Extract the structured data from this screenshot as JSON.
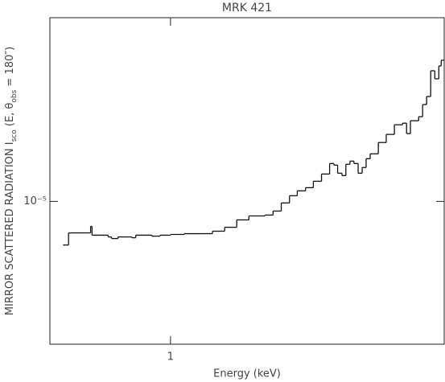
{
  "chart_data": {
    "type": "step-line",
    "title": "MRK 421",
    "x_label": "Energy (keV)",
    "y_label": [
      "MIRROR SCATTERED RADIATION I",
      "sco",
      " (E, ",
      "θ",
      "obs",
      " = 180″)"
    ],
    "log_x": true,
    "log_y": true,
    "color": "#111111",
    "xlim": [
      0.4,
      8.0
    ],
    "xticks": [
      1
    ],
    "ylim": [
      4e-06,
      3.25e-05
    ],
    "yticks": [
      {
        "value": 1e-05,
        "label": "10⁻⁵"
      }
    ],
    "x": [
      0.442,
      0.461,
      0.503,
      0.545,
      0.551,
      0.623,
      0.639,
      0.671,
      0.745,
      0.768,
      0.868,
      0.923,
      1.0,
      1.11,
      1.255,
      1.376,
      1.509,
      1.654,
      1.814,
      2.05,
      2.18,
      2.32,
      2.47,
      2.62,
      2.79,
      2.96,
      3.15,
      3.35,
      3.46,
      3.56,
      3.68,
      3.79,
      3.91,
      4.03,
      4.16,
      4.29,
      4.42,
      4.56,
      4.85,
      5.15,
      5.48,
      5.83,
      6.01,
      6.19,
      6.59,
      6.79,
      7.0,
      7.22,
      7.45,
      7.68,
      7.82
    ],
    "values": [
      7.56e-06,
      8.17e-06,
      8.17e-06,
      8.52e-06,
      8.05e-06,
      7.96e-06,
      7.88e-06,
      7.96e-06,
      7.92e-06,
      8.05e-06,
      8e-06,
      8.05e-06,
      8.09e-06,
      8.13e-06,
      8.13e-06,
      8.26e-06,
      8.47e-06,
      8.88e-06,
      9.11e-06,
      9.16e-06,
      9.4e-06,
      9.9e-06,
      1.037e-05,
      1.07e-05,
      1.092e-05,
      1.138e-05,
      1.192e-05,
      1.275e-05,
      1.262e-05,
      1.198e-05,
      1.18e-05,
      1.269e-05,
      1.295e-05,
      1.275e-05,
      1.198e-05,
      1.243e-05,
      1.315e-05,
      1.357e-05,
      1.459e-05,
      1.537e-05,
      1.635e-05,
      1.652e-05,
      1.545e-05,
      1.678e-05,
      1.722e-05,
      1.861e-05,
      1.96e-05,
      2.312e-05,
      2.196e-05,
      2.385e-05,
      2.474e-05
    ]
  }
}
